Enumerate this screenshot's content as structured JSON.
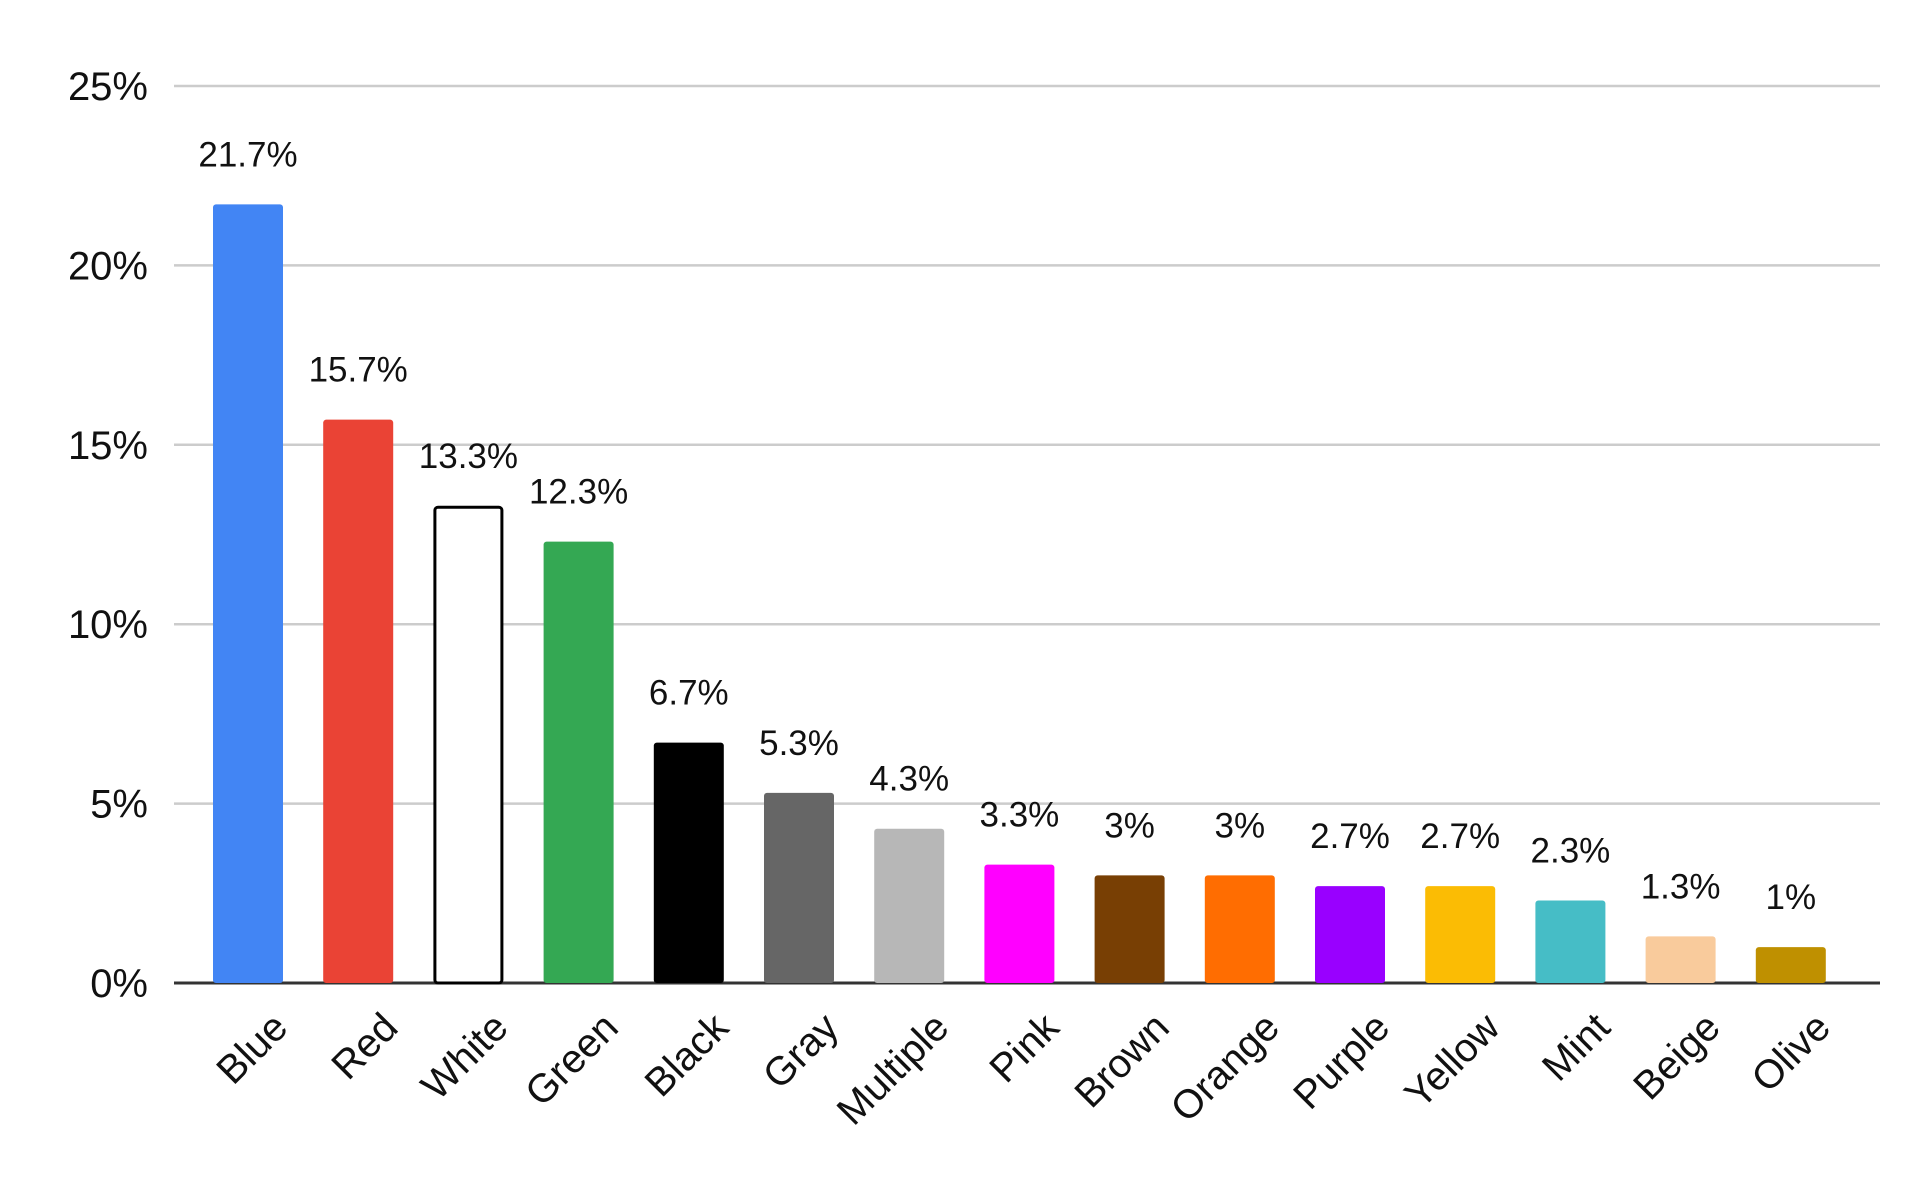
{
  "chart_data": {
    "type": "bar",
    "categories": [
      "Blue",
      "Red",
      "White",
      "Green",
      "Black",
      "Gray",
      "Multiple",
      "Pink",
      "Brown",
      "Orange",
      "Purple",
      "Yellow",
      "Mint",
      "Beige",
      "Olive"
    ],
    "values": [
      21.7,
      15.7,
      13.3,
      12.3,
      6.7,
      5.3,
      4.3,
      3.3,
      3,
      3,
      2.7,
      2.7,
      2.3,
      1.3,
      1
    ],
    "data_labels": [
      "21.7%",
      "15.7%",
      "13.3%",
      "12.3%",
      "6.7%",
      "5.3%",
      "4.3%",
      "3.3%",
      "3%",
      "3%",
      "2.7%",
      "2.7%",
      "2.3%",
      "1.3%",
      "1%"
    ],
    "colors": [
      "#4285f4",
      "#ea4335",
      "#ffffff",
      "#34a853",
      "#000000",
      "#666666",
      "#b7b7b7",
      "#ff00ff",
      "#783f04",
      "#ff6d01",
      "#9900ff",
      "#fbbc04",
      "#46bdc6",
      "#f9cb9c",
      "#bf9000"
    ],
    "outlined": [
      false,
      false,
      true,
      false,
      false,
      false,
      false,
      false,
      false,
      false,
      false,
      false,
      false,
      false,
      false
    ],
    "outline_color": "#000000",
    "yticks": [
      0,
      5,
      10,
      15,
      20,
      25
    ],
    "ytick_labels": [
      "0%",
      "5%",
      "10%",
      "15%",
      "20%",
      "25%"
    ],
    "ylim": [
      0,
      25
    ],
    "title": "",
    "xlabel": "",
    "ylabel": "",
    "grid": true,
    "legend": "none"
  }
}
